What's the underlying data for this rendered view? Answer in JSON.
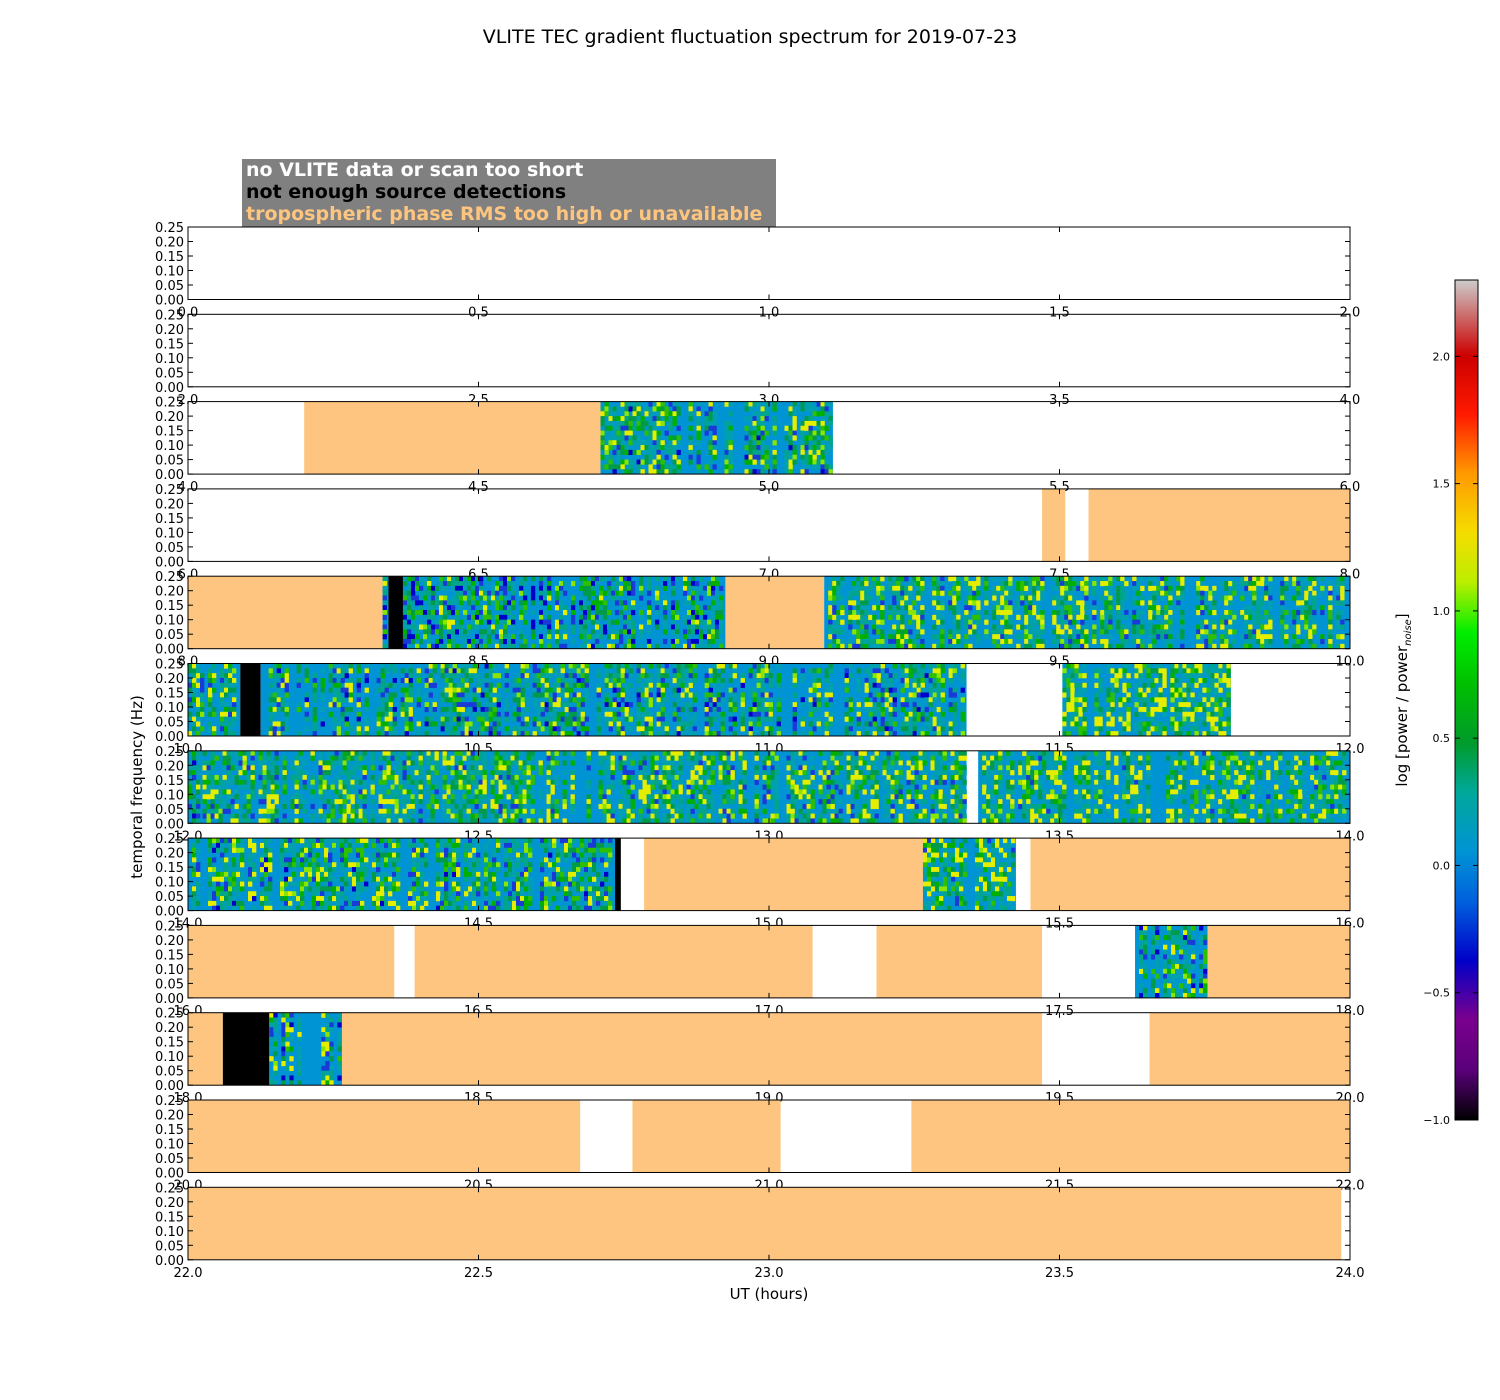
{
  "chart_data": {
    "type": "heatmap",
    "title": "VLITE TEC gradient fluctuation spectrum for 2019-07-23",
    "xlabel": "UT (hours)",
    "ylabel": "temporal frequency (Hz)",
    "yticks": [
      "0.00",
      "0.05",
      "0.10",
      "0.15",
      "0.20",
      "0.25"
    ],
    "ylim": [
      0,
      0.25
    ],
    "legend": [
      {
        "label": "no VLITE data or scan too short",
        "color": "#ffffff"
      },
      {
        "label": "not enough source detections",
        "color": "#000000"
      },
      {
        "label": "tropospheric phase RMS too high or unavailable",
        "color": "#fdc57f"
      }
    ],
    "legend_background": "#808080",
    "colors": {
      "tropo": "#fdc57f",
      "nodata": "#ffffff",
      "nodet": "#000000",
      "spectrum_base": "#0094d4"
    },
    "colorbar": {
      "label": "log [power / power",
      "label_sub": "noise",
      "label_end": "]",
      "range": [
        -1.0,
        2.3
      ],
      "ticks": [
        "−1.0",
        "−0.5",
        "0.0",
        "0.5",
        "1.0",
        "1.5",
        "2.0"
      ]
    },
    "panels": [
      {
        "range": [
          0,
          2
        ],
        "xticks": [
          "0.0",
          "0.5",
          "1.0",
          "1.5",
          "2.0"
        ],
        "segments": []
      },
      {
        "range": [
          2,
          4
        ],
        "xticks": [
          "2.0",
          "2.5",
          "3.0",
          "3.5",
          "4.0"
        ],
        "segments": []
      },
      {
        "range": [
          4,
          6
        ],
        "xticks": [
          "4.0",
          "4.5",
          "5.0",
          "5.5",
          "6.0"
        ],
        "segments": [
          {
            "start": 4.2,
            "end": 4.71,
            "type": "tropo"
          },
          {
            "start": 4.71,
            "end": 5.11,
            "type": "data",
            "base": 0.15
          }
        ]
      },
      {
        "range": [
          6,
          8
        ],
        "xticks": [
          "6.0",
          "6.5",
          "7.0",
          "7.5",
          "8.0"
        ],
        "segments": [
          {
            "start": 7.47,
            "end": 7.51,
            "type": "tropo"
          },
          {
            "start": 7.55,
            "end": 8.0,
            "type": "tropo"
          }
        ]
      },
      {
        "range": [
          8,
          10
        ],
        "xticks": [
          "8.0",
          "8.5",
          "9.0",
          "9.5",
          "10.0"
        ],
        "segments": [
          {
            "start": 8.0,
            "end": 8.335,
            "type": "tropo"
          },
          {
            "start": 8.335,
            "end": 8.345,
            "type": "data",
            "base": 0.1
          },
          {
            "start": 8.345,
            "end": 8.37,
            "type": "nodet"
          },
          {
            "start": 8.37,
            "end": 8.925,
            "type": "data",
            "base": 0.05
          },
          {
            "start": 8.925,
            "end": 9.095,
            "type": "tropo"
          },
          {
            "start": 9.095,
            "end": 10.0,
            "type": "data",
            "base": 0.2
          }
        ]
      },
      {
        "range": [
          10,
          12
        ],
        "xticks": [
          "10.0",
          "10.5",
          "11.0",
          "11.5",
          "12.0"
        ],
        "segments": [
          {
            "start": 10.0,
            "end": 10.09,
            "type": "data",
            "base": 0.2
          },
          {
            "start": 10.09,
            "end": 10.125,
            "type": "nodet"
          },
          {
            "start": 10.125,
            "end": 11.34,
            "type": "data",
            "base": 0.12
          },
          {
            "start": 11.505,
            "end": 11.795,
            "type": "data",
            "base": 0.3
          }
        ]
      },
      {
        "range": [
          12,
          14
        ],
        "xticks": [
          "12.0",
          "12.5",
          "13.0",
          "13.5",
          "14.0"
        ],
        "segments": [
          {
            "start": 12.0,
            "end": 12.025,
            "type": "data",
            "base": 0.0
          },
          {
            "start": 12.025,
            "end": 13.34,
            "type": "data",
            "base": 0.22
          },
          {
            "start": 13.36,
            "end": 14.0,
            "type": "data",
            "base": 0.28
          }
        ]
      },
      {
        "range": [
          14,
          16
        ],
        "xticks": [
          "14.0",
          "14.5",
          "15.0",
          "15.5",
          "16.0"
        ],
        "segments": [
          {
            "start": 14.0,
            "end": 14.735,
            "type": "data",
            "base": 0.15
          },
          {
            "start": 14.735,
            "end": 14.745,
            "type": "nodet"
          },
          {
            "start": 14.785,
            "end": 15.265,
            "type": "tropo"
          },
          {
            "start": 15.265,
            "end": 15.425,
            "type": "data",
            "base": 0.25
          },
          {
            "start": 15.45,
            "end": 16.0,
            "type": "tropo"
          }
        ]
      },
      {
        "range": [
          16,
          18
        ],
        "xticks": [
          "16.0",
          "16.5",
          "17.0",
          "17.5",
          "18.0"
        ],
        "segments": [
          {
            "start": 16.0,
            "end": 16.355,
            "type": "tropo"
          },
          {
            "start": 16.39,
            "end": 17.075,
            "type": "tropo"
          },
          {
            "start": 17.185,
            "end": 17.47,
            "type": "tropo"
          },
          {
            "start": 17.63,
            "end": 17.755,
            "type": "data",
            "base": 0.1
          },
          {
            "start": 17.755,
            "end": 18.0,
            "type": "tropo"
          }
        ]
      },
      {
        "range": [
          18,
          20
        ],
        "xticks": [
          "18.0",
          "18.5",
          "19.0",
          "19.5",
          "20.0"
        ],
        "segments": [
          {
            "start": 18.0,
            "end": 18.06,
            "type": "tropo"
          },
          {
            "start": 18.06,
            "end": 18.14,
            "type": "nodet"
          },
          {
            "start": 18.14,
            "end": 18.265,
            "type": "data",
            "base": 0.15
          },
          {
            "start": 18.265,
            "end": 19.47,
            "type": "tropo"
          },
          {
            "start": 19.655,
            "end": 20.0,
            "type": "tropo"
          }
        ]
      },
      {
        "range": [
          20,
          22
        ],
        "xticks": [
          "20.0",
          "20.5",
          "21.0",
          "21.5",
          "22.0"
        ],
        "segments": [
          {
            "start": 20.0,
            "end": 20.675,
            "type": "tropo"
          },
          {
            "start": 20.765,
            "end": 21.02,
            "type": "tropo"
          },
          {
            "start": 21.245,
            "end": 22.0,
            "type": "tropo"
          }
        ]
      },
      {
        "range": [
          22,
          24
        ],
        "xticks": [
          "22.0",
          "22.5",
          "23.0",
          "23.5",
          "24.0"
        ],
        "segments": [
          {
            "start": 22.0,
            "end": 23.985,
            "type": "tropo"
          }
        ]
      }
    ]
  }
}
